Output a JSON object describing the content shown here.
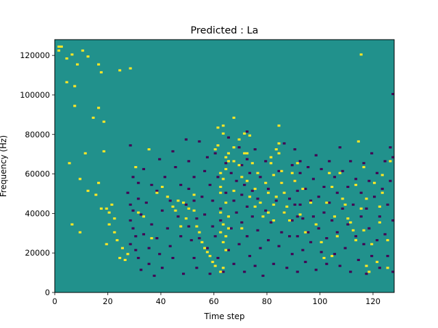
{
  "chart_data": {
    "type": "heatmap",
    "title": "Predicted : La",
    "xlabel": "Time step",
    "ylabel": "Frequency (Hz)",
    "xlim": [
      0,
      128
    ],
    "ylim": [
      0,
      128000
    ],
    "x_ticks": [
      0,
      20,
      40,
      60,
      80,
      100,
      120
    ],
    "x_tick_labels": [
      "0",
      "20",
      "40",
      "60",
      "80",
      "100",
      "120"
    ],
    "y_ticks": [
      0,
      20000,
      40000,
      60000,
      80000,
      100000,
      120000
    ],
    "y_tick_labels": [
      "0",
      "20000",
      "40000",
      "60000",
      "80000",
      "100000",
      "120000"
    ],
    "colormap": "viridis",
    "value_levels": [
      -1,
      0,
      1
    ],
    "level_colors": {
      "-1": "#440154",
      "0": "#21918c",
      "1": "#fde725"
    },
    "background_value": 0,
    "grid": false,
    "cells_positive": [
      [
        1,
        122
      ],
      [
        1,
        124
      ],
      [
        2,
        124
      ],
      [
        4,
        118
      ],
      [
        4,
        106
      ],
      [
        5,
        65
      ],
      [
        6,
        34
      ],
      [
        6,
        120
      ],
      [
        7,
        104
      ],
      [
        7,
        94
      ],
      [
        8,
        115
      ],
      [
        9,
        30
      ],
      [
        9,
        57
      ],
      [
        10,
        122
      ],
      [
        11,
        70
      ],
      [
        12,
        51
      ],
      [
        12,
        119
      ],
      [
        14,
        88
      ],
      [
        15,
        49
      ],
      [
        16,
        115
      ],
      [
        16,
        93
      ],
      [
        16,
        55
      ],
      [
        17,
        42
      ],
      [
        17,
        111
      ],
      [
        18,
        86
      ],
      [
        18,
        71
      ],
      [
        19,
        42
      ],
      [
        19,
        24
      ],
      [
        20,
        40
      ],
      [
        20,
        34
      ],
      [
        21,
        44
      ],
      [
        22,
        37
      ],
      [
        22,
        30
      ],
      [
        23,
        26
      ],
      [
        24,
        17
      ],
      [
        24,
        112
      ],
      [
        25,
        22
      ],
      [
        26,
        16
      ],
      [
        27,
        19
      ],
      [
        28,
        113
      ],
      [
        30,
        63
      ],
      [
        31,
        40
      ],
      [
        33,
        38
      ],
      [
        35,
        72
      ],
      [
        36,
        27
      ],
      [
        38,
        50
      ],
      [
        40,
        53
      ],
      [
        42,
        48
      ],
      [
        44,
        43
      ],
      [
        45,
        41
      ],
      [
        46,
        46
      ],
      [
        47,
        33
      ],
      [
        48,
        45
      ],
      [
        49,
        37
      ],
      [
        50,
        42
      ],
      [
        52,
        41
      ],
      [
        52,
        49
      ],
      [
        53,
        33
      ],
      [
        54,
        30
      ],
      [
        55,
        25
      ],
      [
        56,
        22
      ],
      [
        57,
        20
      ],
      [
        58,
        18
      ],
      [
        59,
        15
      ],
      [
        60,
        13
      ],
      [
        60,
        72
      ],
      [
        61,
        74
      ],
      [
        61,
        83
      ],
      [
        62,
        60
      ],
      [
        62,
        53
      ],
      [
        62,
        30
      ],
      [
        62,
        40
      ],
      [
        62,
        50
      ],
      [
        62,
        10
      ],
      [
        63,
        57
      ],
      [
        63,
        34
      ],
      [
        63,
        25
      ],
      [
        63,
        12
      ],
      [
        63,
        84
      ],
      [
        63,
        80
      ],
      [
        64,
        62
      ],
      [
        64,
        45
      ],
      [
        64,
        28
      ],
      [
        64,
        21
      ],
      [
        64,
        68
      ],
      [
        65,
        66
      ],
      [
        65,
        70
      ],
      [
        65,
        38
      ],
      [
        65,
        32
      ],
      [
        67,
        88
      ],
      [
        67,
        73
      ],
      [
        67,
        66
      ],
      [
        67,
        51
      ],
      [
        69,
        77
      ],
      [
        69,
        64
      ],
      [
        70,
        32
      ],
      [
        70,
        58
      ],
      [
        71,
        80
      ],
      [
        71,
        70
      ],
      [
        72,
        70
      ],
      [
        72,
        56
      ],
      [
        73,
        79
      ],
      [
        73,
        48
      ],
      [
        74,
        65
      ],
      [
        75,
        52
      ],
      [
        75,
        43
      ],
      [
        76,
        60
      ],
      [
        77,
        45
      ],
      [
        78,
        38
      ],
      [
        79,
        55
      ],
      [
        80,
        50
      ],
      [
        80,
        40
      ],
      [
        81,
        68
      ],
      [
        81,
        65
      ],
      [
        82,
        59
      ],
      [
        82,
        44
      ],
      [
        82,
        36
      ],
      [
        83,
        72
      ],
      [
        83,
        48
      ],
      [
        84,
        84
      ],
      [
        84,
        75
      ],
      [
        84,
        70
      ],
      [
        85,
        61
      ],
      [
        85,
        55
      ],
      [
        86,
        40
      ],
      [
        86,
        50
      ],
      [
        87,
        43
      ],
      [
        88,
        36
      ],
      [
        89,
        60
      ],
      [
        90,
        56
      ],
      [
        91,
        65
      ],
      [
        92,
        39
      ],
      [
        93,
        52
      ],
      [
        94,
        30
      ],
      [
        96,
        45
      ],
      [
        98,
        34
      ],
      [
        100,
        25
      ],
      [
        101,
        17
      ],
      [
        102,
        45
      ],
      [
        103,
        60
      ],
      [
        104,
        18
      ],
      [
        104,
        53
      ],
      [
        105,
        38
      ],
      [
        106,
        28
      ],
      [
        107,
        60
      ],
      [
        108,
        47
      ],
      [
        109,
        44
      ],
      [
        110,
        37
      ],
      [
        111,
        35
      ],
      [
        112,
        31
      ],
      [
        113,
        26
      ],
      [
        113,
        54
      ],
      [
        114,
        76
      ],
      [
        115,
        42
      ],
      [
        115,
        120
      ],
      [
        116,
        31
      ],
      [
        116,
        63
      ],
      [
        117,
        47
      ],
      [
        117,
        13
      ],
      [
        118,
        10
      ],
      [
        119,
        24
      ],
      [
        120,
        55
      ],
      [
        121,
        15
      ],
      [
        122,
        43
      ],
      [
        122,
        35
      ],
      [
        123,
        59
      ],
      [
        123,
        50
      ],
      [
        125,
        26
      ],
      [
        125,
        12
      ],
      [
        126,
        66
      ]
    ],
    "cells_negative": [
      [
        27,
        50
      ],
      [
        28,
        74
      ],
      [
        28,
        44
      ],
      [
        28,
        36
      ],
      [
        28,
        24
      ],
      [
        29,
        58
      ],
      [
        29,
        41
      ],
      [
        29,
        32
      ],
      [
        30,
        28
      ],
      [
        30,
        21
      ],
      [
        31,
        17
      ],
      [
        31,
        55
      ],
      [
        31,
        47
      ],
      [
        32,
        39
      ],
      [
        32,
        11
      ],
      [
        33,
        62
      ],
      [
        33,
        29
      ],
      [
        34,
        45
      ],
      [
        35,
        22
      ],
      [
        35,
        14
      ],
      [
        36,
        54
      ],
      [
        36,
        34
      ],
      [
        37,
        8
      ],
      [
        38,
        51
      ],
      [
        38,
        27
      ],
      [
        39,
        19
      ],
      [
        39,
        67
      ],
      [
        40,
        41
      ],
      [
        40,
        12
      ],
      [
        41,
        58
      ],
      [
        42,
        32
      ],
      [
        43,
        23
      ],
      [
        43,
        46
      ],
      [
        44,
        71
      ],
      [
        44,
        17
      ],
      [
        45,
        63
      ],
      [
        46,
        38
      ],
      [
        47,
        28
      ],
      [
        47,
        54
      ],
      [
        48,
        9
      ],
      [
        49,
        44
      ],
      [
        49,
        77
      ],
      [
        50,
        66
      ],
      [
        50,
        52
      ],
      [
        50,
        33
      ],
      [
        51,
        26
      ],
      [
        52,
        58
      ],
      [
        52,
        46
      ],
      [
        52,
        17
      ],
      [
        53,
        37
      ],
      [
        53,
        12
      ],
      [
        54,
        76
      ],
      [
        54,
        27
      ],
      [
        55,
        48
      ],
      [
        56,
        61
      ],
      [
        56,
        39
      ],
      [
        57,
        22
      ],
      [
        57,
        68
      ],
      [
        58,
        9
      ],
      [
        58,
        54
      ],
      [
        59,
        46
      ],
      [
        59,
        33
      ],
      [
        60,
        28
      ],
      [
        60,
        70
      ],
      [
        61,
        17
      ],
      [
        61,
        58
      ],
      [
        62,
        42
      ],
      [
        62,
        36
      ],
      [
        63,
        10
      ],
      [
        64,
        65
      ],
      [
        64,
        50
      ],
      [
        65,
        21
      ],
      [
        65,
        78
      ],
      [
        66,
        60
      ],
      [
        66,
        32
      ],
      [
        67,
        46
      ],
      [
        67,
        14
      ],
      [
        68,
        56
      ],
      [
        68,
        40
      ],
      [
        69,
        73
      ],
      [
        69,
        24
      ],
      [
        70,
        64
      ],
      [
        70,
        35
      ],
      [
        70,
        49
      ],
      [
        71,
        10
      ],
      [
        71,
        54
      ],
      [
        72,
        28
      ],
      [
        72,
        67
      ],
      [
        72,
        43
      ],
      [
        72,
        81
      ],
      [
        73,
        18
      ],
      [
        73,
        60
      ],
      [
        74,
        38
      ],
      [
        74,
        51
      ],
      [
        75,
        13
      ],
      [
        75,
        72
      ],
      [
        76,
        31
      ],
      [
        76,
        47
      ],
      [
        77,
        58
      ],
      [
        77,
        22
      ],
      [
        78,
        8
      ],
      [
        79,
        41
      ],
      [
        79,
        66
      ],
      [
        80,
        26
      ],
      [
        80,
        52
      ],
      [
        81,
        35
      ],
      [
        82,
        14
      ],
      [
        83,
        46
      ],
      [
        84,
        61
      ],
      [
        84,
        23
      ],
      [
        85,
        30
      ],
      [
        85,
        55
      ],
      [
        86,
        75
      ],
      [
        86,
        40
      ],
      [
        87,
        12
      ],
      [
        88,
        47
      ],
      [
        88,
        28
      ],
      [
        89,
        64
      ],
      [
        89,
        36
      ],
      [
        89,
        19
      ],
      [
        90,
        56
      ],
      [
        90,
        44
      ],
      [
        90,
        72
      ],
      [
        91,
        51
      ],
      [
        91,
        38
      ],
      [
        91,
        28
      ],
      [
        91,
        10
      ],
      [
        92,
        60
      ],
      [
        92,
        44
      ],
      [
        92,
        66
      ],
      [
        93,
        37
      ],
      [
        93,
        21
      ],
      [
        94,
        52
      ],
      [
        94,
        15
      ],
      [
        95,
        30
      ],
      [
        95,
        63
      ],
      [
        96,
        46
      ],
      [
        96,
        25
      ],
      [
        97,
        57
      ],
      [
        97,
        38
      ],
      [
        98,
        11
      ],
      [
        98,
        69
      ],
      [
        99,
        32
      ],
      [
        99,
        48
      ],
      [
        100,
        20
      ],
      [
        100,
        62
      ],
      [
        101,
        40
      ],
      [
        101,
        53
      ],
      [
        102,
        27
      ],
      [
        102,
        14
      ],
      [
        103,
        66
      ],
      [
        103,
        45
      ],
      [
        104,
        36
      ],
      [
        105,
        58
      ],
      [
        105,
        19
      ],
      [
        106,
        50
      ],
      [
        106,
        30
      ],
      [
        107,
        13
      ],
      [
        107,
        73
      ],
      [
        108,
        42
      ],
      [
        108,
        61
      ],
      [
        109,
        22
      ],
      [
        110,
        53
      ],
      [
        110,
        34
      ],
      [
        111,
        10
      ],
      [
        111,
        66
      ],
      [
        112,
        44
      ],
      [
        113,
        28
      ],
      [
        113,
        57
      ],
      [
        114,
        16
      ],
      [
        115,
        38
      ],
      [
        115,
        50
      ],
      [
        116,
        65
      ],
      [
        116,
        24
      ],
      [
        117,
        9
      ],
      [
        117,
        42
      ],
      [
        118,
        56
      ],
      [
        118,
        32
      ],
      [
        119,
        70
      ],
      [
        119,
        18
      ],
      [
        120,
        48
      ],
      [
        121,
        26
      ],
      [
        121,
        60
      ],
      [
        122,
        38
      ],
      [
        122,
        12
      ],
      [
        123,
        52
      ],
      [
        124,
        29
      ],
      [
        124,
        66
      ],
      [
        125,
        44
      ],
      [
        125,
        18
      ],
      [
        126,
        73
      ],
      [
        126,
        56
      ],
      [
        127,
        10
      ],
      [
        127,
        36
      ],
      [
        127,
        100
      ],
      [
        127,
        68
      ]
    ]
  }
}
